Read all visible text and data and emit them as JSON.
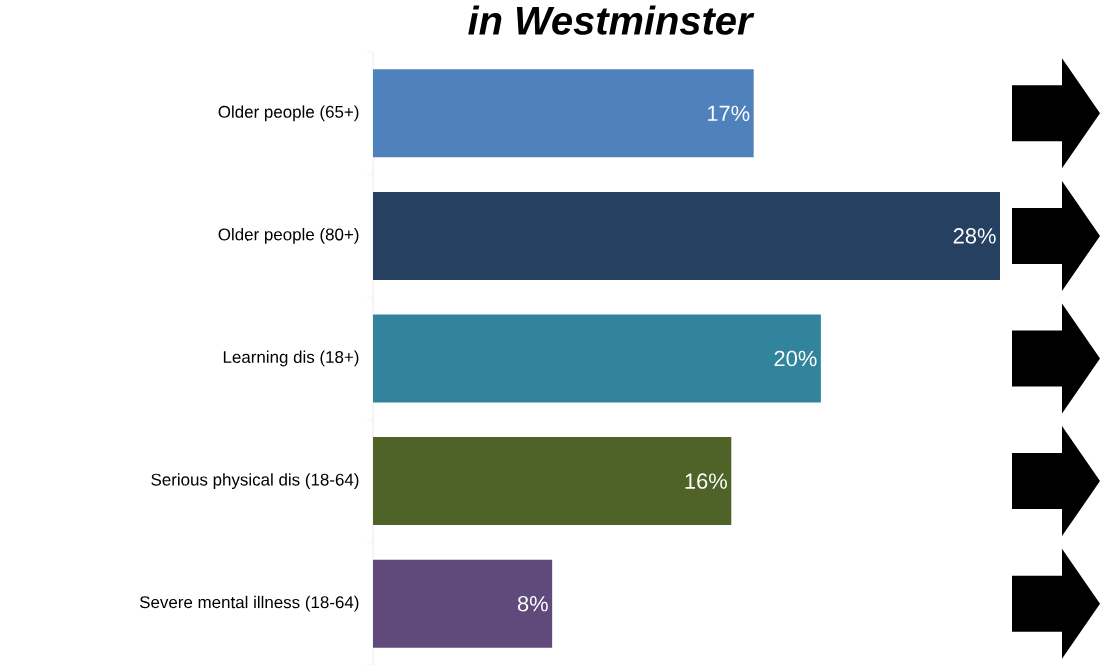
{
  "chart_data": {
    "type": "bar",
    "orientation": "horizontal",
    "title": "in Westminster",
    "categories": [
      "Older people (65+)",
      "Older people (80+)",
      "Learning dis (18+)",
      "Serious physical dis (18-64)",
      "Severe mental illness (18-64)"
    ],
    "values": [
      17,
      28,
      20,
      16,
      8
    ],
    "colors": [
      "#4f81bd",
      "#254061",
      "#31849b",
      "#4f6228",
      "#604a7b"
    ],
    "value_labels": [
      "17%",
      "28%",
      "20%",
      "16%",
      "8%"
    ],
    "tick_labels": "y"
  }
}
